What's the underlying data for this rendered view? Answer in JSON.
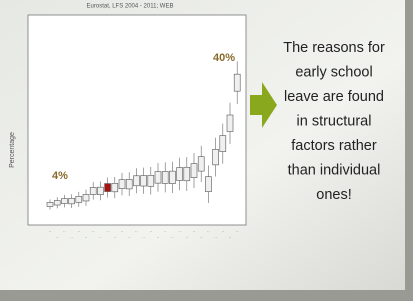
{
  "slide": {
    "source": "Eurostat, LFS 2004 - 2011; WEB",
    "text_lines": [
      "The reasons for",
      "early school",
      "leave are found",
      "in structural",
      "factors rather",
      "than individual",
      "ones!"
    ]
  },
  "chart_data": {
    "type": "box",
    "y_label": "Percentage",
    "annotations": [
      "4%",
      "40%"
    ],
    "values": [
      4,
      4.5,
      5,
      5,
      5.5,
      6,
      8,
      8,
      9,
      9,
      10,
      10,
      11,
      11,
      11,
      12,
      12,
      12,
      13,
      13,
      14,
      16,
      10,
      18,
      22,
      28,
      40
    ],
    "color": "#f0f0f0",
    "ylim": [
      0,
      60
    ]
  }
}
